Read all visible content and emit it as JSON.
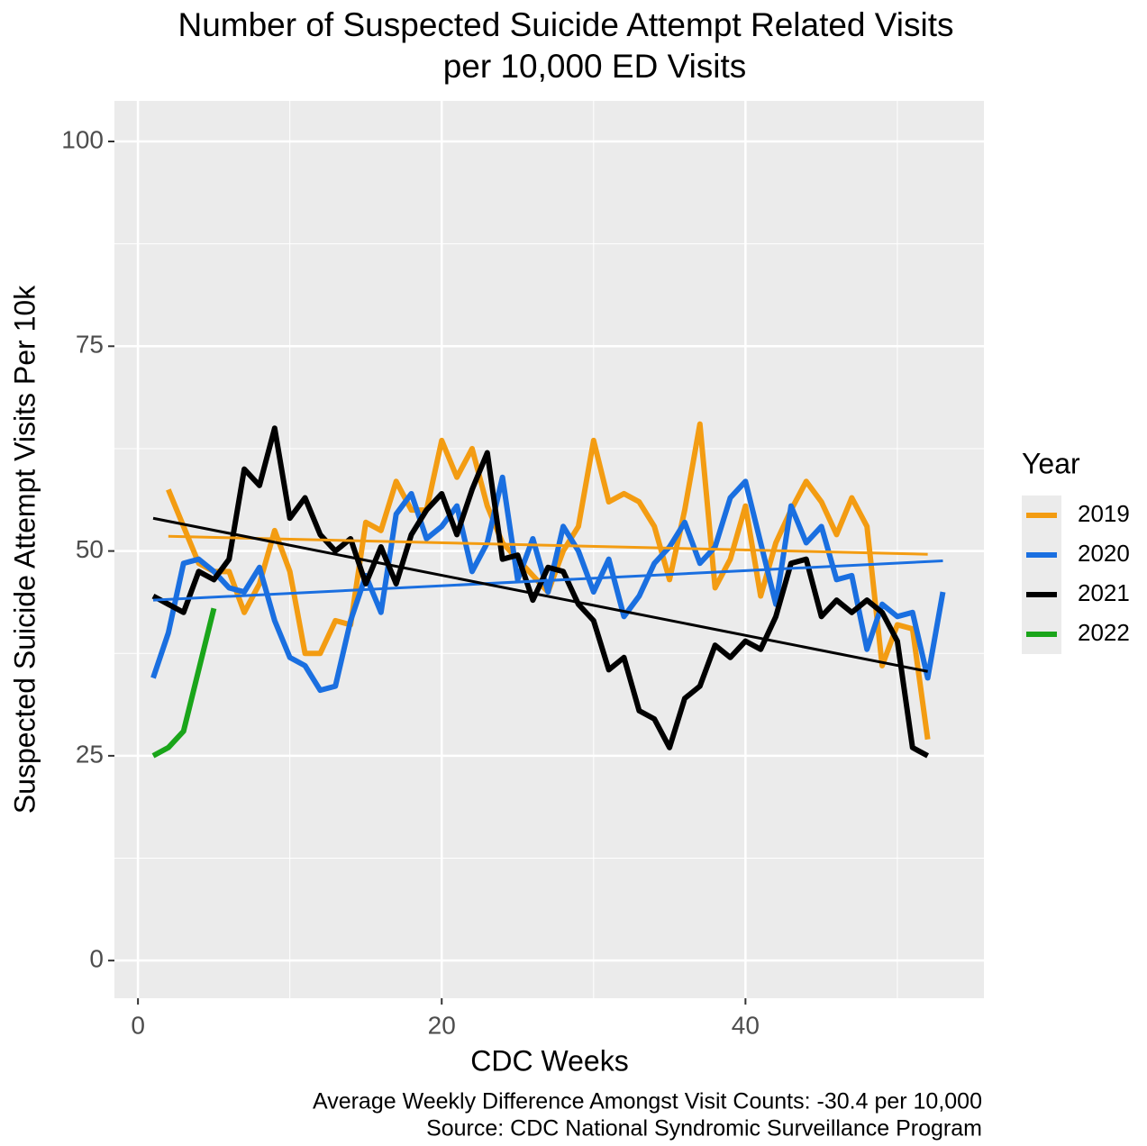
{
  "chart_data": {
    "type": "line",
    "title": [
      "Number of Suspected Suicide Attempt Related Visits",
      "per 10,000 ED Visits"
    ],
    "x_label": "CDC Weeks",
    "y_label": "Suspected Suicide Attempt Visits Per 10k",
    "caption": [
      "Average Weekly Difference Amongst Visit Counts: -30.4 per 10,000",
      "Source: CDC National Syndromic Surveillance Program"
    ],
    "legend_title": "Year",
    "legend_position": "right",
    "grid": true,
    "xlim": [
      -1.55,
      55.7
    ],
    "ylim": [
      -4.6,
      104.95
    ],
    "xticks": [
      0,
      20,
      40
    ],
    "yticks": [
      0,
      25,
      50,
      75,
      100
    ],
    "series": [
      {
        "name": "2019",
        "color": "#f39c12",
        "x": [
          2,
          3,
          4,
          5,
          6,
          7,
          8,
          9,
          10,
          11,
          12,
          13,
          14,
          15,
          16,
          17,
          18,
          19,
          20,
          21,
          22,
          23,
          24,
          25,
          26,
          27,
          28,
          29,
          30,
          31,
          32,
          33,
          34,
          35,
          36,
          37,
          38,
          39,
          40,
          41,
          42,
          43,
          44,
          45,
          46,
          47,
          48,
          49,
          50,
          51,
          52
        ],
        "values": [
          57.5,
          53,
          48.5,
          47.5,
          47.5,
          42.5,
          46,
          52.5,
          47.5,
          37.5,
          37.5,
          41.5,
          41,
          53.5,
          52.5,
          58.5,
          55,
          55,
          63.5,
          59,
          62.5,
          55.5,
          51,
          49,
          47,
          45,
          50,
          53,
          63.5,
          56,
          57,
          56,
          53,
          46.5,
          55,
          65.5,
          45.5,
          49,
          55.5,
          44.5,
          51,
          55,
          58.5,
          56,
          52,
          56.5,
          53,
          36,
          41,
          40.5,
          27
        ],
        "trend": {
          "x": [
            2,
            52
          ],
          "values": [
            51.8,
            49.6
          ]
        }
      },
      {
        "name": "2020",
        "color": "#1a6fe0",
        "x": [
          1,
          2,
          3,
          4,
          5,
          6,
          7,
          8,
          9,
          10,
          11,
          12,
          13,
          14,
          15,
          16,
          17,
          18,
          19,
          20,
          21,
          22,
          23,
          24,
          25,
          26,
          27,
          28,
          29,
          30,
          31,
          32,
          33,
          34,
          35,
          36,
          37,
          38,
          39,
          40,
          41,
          42,
          43,
          44,
          45,
          46,
          47,
          48,
          49,
          50,
          51,
          52,
          53
        ],
        "values": [
          34.5,
          40,
          48.5,
          49,
          47.5,
          45.5,
          45,
          48,
          41.5,
          37,
          36,
          33,
          33.5,
          41.5,
          47,
          42.5,
          54.5,
          57,
          51.5,
          53,
          55.5,
          47.5,
          51,
          59,
          46.5,
          51.5,
          45,
          53,
          50,
          45,
          49,
          42,
          44.5,
          48.5,
          50.5,
          53.5,
          48.5,
          50.5,
          56.5,
          58.5,
          51,
          43.5,
          55.5,
          51,
          53,
          46.5,
          47,
          38,
          43.5,
          42,
          42.5,
          34.5,
          45
        ],
        "trend": {
          "x": [
            1,
            53
          ],
          "values": [
            44,
            48.8
          ]
        }
      },
      {
        "name": "2021",
        "color": "#000000",
        "x": [
          1,
          2,
          3,
          4,
          5,
          6,
          7,
          8,
          9,
          10,
          11,
          12,
          13,
          14,
          15,
          16,
          17,
          18,
          19,
          20,
          21,
          22,
          23,
          24,
          25,
          26,
          27,
          28,
          29,
          30,
          31,
          32,
          33,
          34,
          35,
          36,
          37,
          38,
          39,
          40,
          41,
          42,
          43,
          44,
          45,
          46,
          47,
          48,
          49,
          50,
          51,
          52
        ],
        "values": [
          44.5,
          43.5,
          42.5,
          47.5,
          46.5,
          49,
          60,
          58,
          65,
          54,
          56.5,
          52,
          50,
          51.5,
          46,
          50.5,
          46,
          52,
          55,
          57,
          52,
          57.5,
          62,
          49,
          49.5,
          44,
          48,
          47.5,
          43.5,
          41.5,
          35.5,
          37,
          30.5,
          29.5,
          26,
          32,
          33.5,
          38.5,
          37,
          39,
          38,
          42,
          48.5,
          49,
          42,
          44,
          42.5,
          44,
          42.5,
          39,
          26,
          25
        ],
        "trend": {
          "x": [
            1,
            52
          ],
          "values": [
            54,
            35.3
          ]
        }
      },
      {
        "name": "2022",
        "color": "#1aa51a",
        "x": [
          1,
          2,
          3,
          4,
          5
        ],
        "values": [
          25,
          26,
          28,
          35.5,
          43
        ]
      }
    ]
  }
}
